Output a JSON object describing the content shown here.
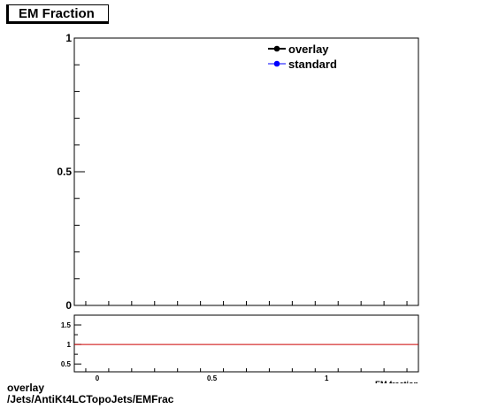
{
  "title": "EM Fraction",
  "footer": {
    "line1": "overlay",
    "line2": "/Jets/AntiKt4LCTopoJets/EMFrac"
  },
  "chart_data": [
    {
      "type": "line",
      "title": "EM Fraction",
      "xlabel": "EM fraction",
      "ylabel": "",
      "xlim": [
        -0.1,
        1.4
      ],
      "ylim": [
        0,
        1
      ],
      "yticks": [
        "0",
        "0.5",
        "1"
      ],
      "series": [
        {
          "name": "overlay",
          "color": "#000000",
          "x": [],
          "y": []
        },
        {
          "name": "standard",
          "color": "#0000ff",
          "x": [],
          "y": []
        }
      ],
      "legend": "top-right"
    },
    {
      "type": "line",
      "title": "",
      "xlabel": "EM fraction",
      "ylabel": "",
      "xlim": [
        -0.1,
        1.4
      ],
      "ylim": [
        0.3,
        1.75
      ],
      "xticks": [
        "0",
        "0.5",
        "1"
      ],
      "yticks": [
        "0.5",
        "1",
        "1.5"
      ],
      "reference_line": {
        "y": 1,
        "color": "#cc0000"
      }
    }
  ]
}
